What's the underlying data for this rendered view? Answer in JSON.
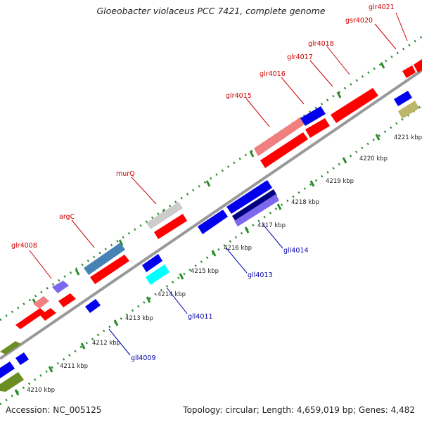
{
  "title": "Gloeobacter violaceus PCC 7421, complete genome",
  "footer": {
    "accession_label": "Accession:",
    "accession": "NC_005125",
    "topology_label": "Topology:",
    "topology": "circular;",
    "length_label": "Length:",
    "length": "4,659,019 bp;",
    "genes_label": "Genes:",
    "genes": "4,482"
  },
  "colors": {
    "forward_label": "#cc0000",
    "reverse_label": "#0000aa",
    "backbone": "#999999",
    "ticks": "#2a8a2a"
  },
  "scale_labels": [
    "4210 kbp",
    "4211 kbp",
    "4212 kbp",
    "4213 kbp",
    "4214 kbp",
    "4215 kbp",
    "4216 kbp",
    "4217 kbp",
    "4218 kbp",
    "4219 kbp",
    "4220 kbp",
    "4221 kbp"
  ],
  "forward_gene_labels": [
    "glr4008",
    "argC",
    "murQ",
    "glr4015",
    "glr4016",
    "glr4017",
    "glr4018",
    "gsr4020",
    "glr4021"
  ],
  "reverse_gene_labels": [
    "gll4009",
    "gll4011",
    "gll4013",
    "gll4014"
  ]
}
